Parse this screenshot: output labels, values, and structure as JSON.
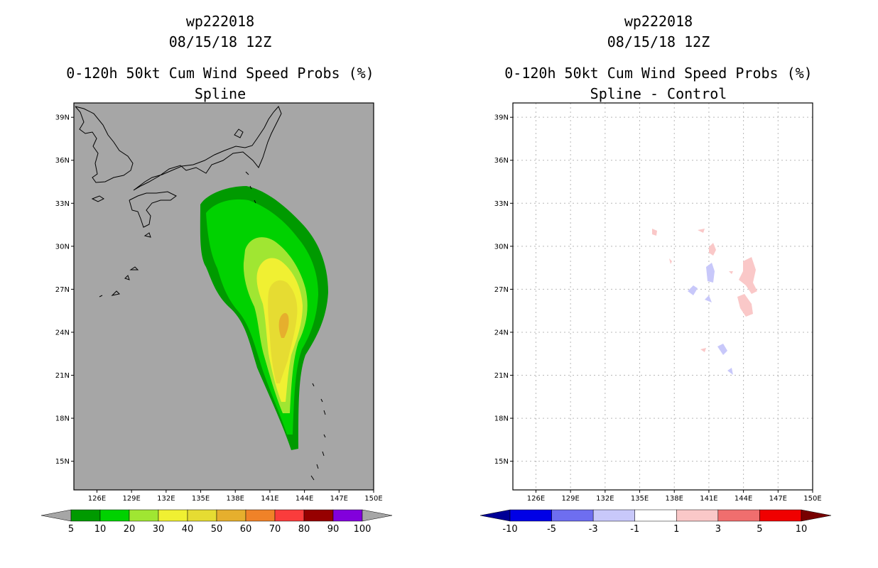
{
  "chart_data": [
    {
      "type": "heatmap",
      "title_line1": "wp222018",
      "title_line2": "08/15/18 12Z",
      "title_line3": "0-120h 50kt Cum Wind Speed Probs (%)",
      "subtitle": "Spline",
      "xlim": [
        124,
        150
      ],
      "ylim": [
        13,
        40
      ],
      "x_ticks": [
        126,
        129,
        132,
        135,
        138,
        141,
        144,
        147,
        150
      ],
      "x_tick_labels": [
        "126E",
        "129E",
        "132E",
        "135E",
        "138E",
        "141E",
        "144E",
        "147E",
        "150E"
      ],
      "y_ticks": [
        39,
        36,
        33,
        30,
        27,
        24,
        21,
        18,
        15
      ],
      "y_tick_labels": [
        "39N",
        "36N",
        "33N",
        "30N",
        "27N",
        "24N",
        "21N",
        "18N",
        "15N"
      ],
      "colorbar": {
        "levels": [
          "5",
          "10",
          "20",
          "30",
          "40",
          "50",
          "60",
          "70",
          "80",
          "90",
          "100"
        ],
        "colors": [
          "#009a00",
          "#00d200",
          "#a0e632",
          "#f0f032",
          "#e6dc32",
          "#e6af2d",
          "#f08228",
          "#fa3c3c",
          "#960000",
          "#8200dc"
        ],
        "under_color": "#a6a6a6",
        "over_color": "#a6a6a6"
      },
      "regions": [
        {
          "level": "5-10",
          "color": "#009a00"
        },
        {
          "level": "10-20",
          "color": "#00d200"
        },
        {
          "level": "20-30",
          "color": "#a0e632"
        },
        {
          "level": "30-40",
          "color": "#f0f032"
        },
        {
          "level": "40-50",
          "color": "#e6dc32"
        },
        {
          "level": "50-60",
          "color": "#e6af2d"
        }
      ]
    },
    {
      "type": "heatmap",
      "title_line1": "wp222018",
      "title_line2": "08/15/18 12Z",
      "title_line3": "0-120h 50kt Cum Wind Speed Probs (%)",
      "subtitle": "Spline - Control",
      "xlim": [
        124,
        150
      ],
      "ylim": [
        13,
        40
      ],
      "x_ticks": [
        126,
        129,
        132,
        135,
        138,
        141,
        144,
        147,
        150
      ],
      "x_tick_labels": [
        "126E",
        "129E",
        "132E",
        "135E",
        "138E",
        "141E",
        "144E",
        "147E",
        "150E"
      ],
      "y_ticks": [
        39,
        36,
        33,
        30,
        27,
        24,
        21,
        18,
        15
      ],
      "y_tick_labels": [
        "39N",
        "36N",
        "33N",
        "30N",
        "27N",
        "24N",
        "21N",
        "18N",
        "15N"
      ],
      "colorbar": {
        "levels": [
          "-10",
          "-5",
          "-3",
          "-1",
          "1",
          "3",
          "5",
          "10"
        ],
        "colors": [
          "#0000e6",
          "#6e6ef0",
          "#c8c8fa",
          "#ffffff",
          "#fac8c8",
          "#f06e6e",
          "#f00000"
        ],
        "under_color": "#000096",
        "over_color": "#780000"
      },
      "regions": [
        {
          "level": "1-3",
          "color": "#fac8c8"
        },
        {
          "level": "-3--1",
          "color": "#c8c8fa"
        }
      ]
    }
  ]
}
